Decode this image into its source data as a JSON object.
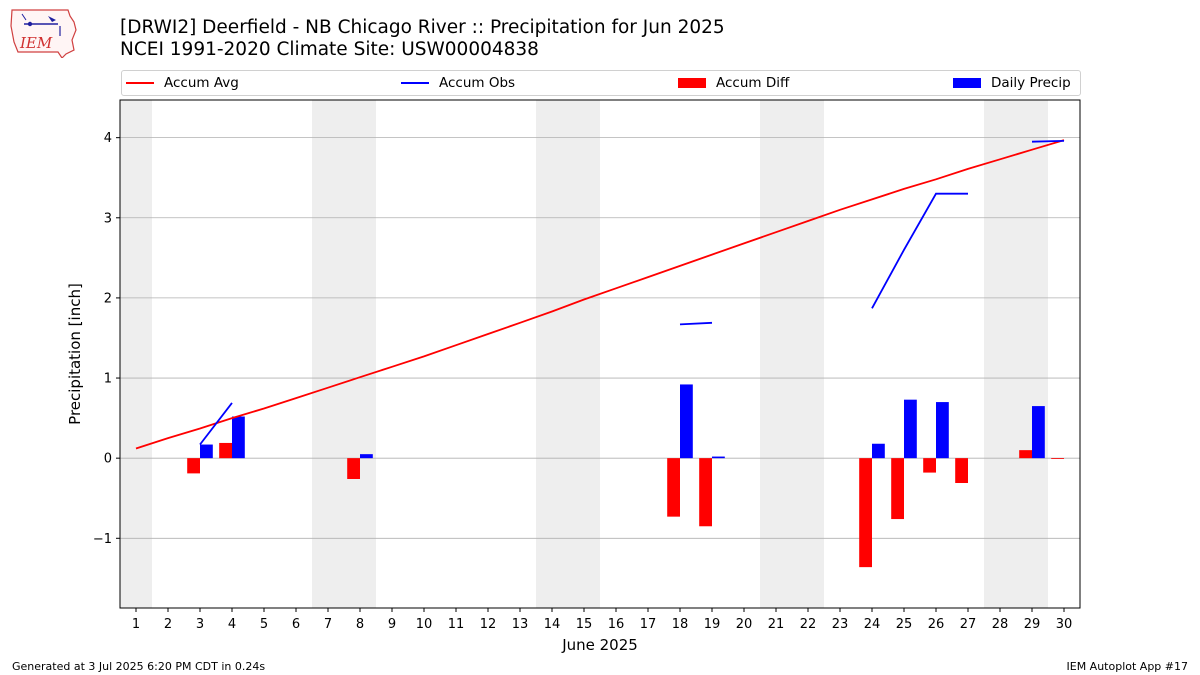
{
  "header": {
    "title_line1": "[DRWI2] Deerfield - NB Chicago River :: Precipitation for Jun 2025",
    "title_line2": "NCEI 1991-2020 Climate Site: USW00004838",
    "logo_text": "IEM"
  },
  "footer": {
    "left": "Generated at 3 Jul 2025 6:20 PM CDT in 0.24s",
    "right": "IEM Autoplot App #17"
  },
  "colors": {
    "accum_avg": "#ff0000",
    "accum_obs": "#0000ff",
    "accum_diff": "#ff0000",
    "daily_precip": "#0000ff",
    "weekend_shade": "#eeeeee",
    "grid": "#b0b0b0"
  },
  "chart_data": {
    "type": "bar",
    "xlabel": "June 2025",
    "ylabel": "Precipitation [inch]",
    "ylim": [
      -1.87,
      4.47
    ],
    "yticks": [
      -1,
      0,
      1,
      2,
      3,
      4
    ],
    "grid": "horizontal",
    "legend_placement": "top",
    "legend": [
      {
        "name": "Accum Avg",
        "kind": "line",
        "color": "#ff0000"
      },
      {
        "name": "Accum Obs",
        "kind": "line",
        "color": "#0000ff"
      },
      {
        "name": "Accum Diff",
        "kind": "bar",
        "color": "#ff0000"
      },
      {
        "name": "Daily Precip",
        "kind": "bar",
        "color": "#0000ff"
      }
    ],
    "days": [
      1,
      2,
      3,
      4,
      5,
      6,
      7,
      8,
      9,
      10,
      11,
      12,
      13,
      14,
      15,
      16,
      17,
      18,
      19,
      20,
      21,
      22,
      23,
      24,
      25,
      26,
      27,
      28,
      29,
      30
    ],
    "weekend_days": [
      1,
      7,
      8,
      14,
      15,
      21,
      22,
      28,
      29
    ],
    "accum_avg": [
      0.12,
      0.25,
      0.37,
      0.5,
      0.62,
      0.75,
      0.88,
      1.01,
      1.14,
      1.27,
      1.41,
      1.55,
      1.69,
      1.83,
      1.98,
      2.12,
      2.26,
      2.4,
      2.54,
      2.68,
      2.82,
      2.96,
      3.1,
      3.23,
      3.36,
      3.48,
      3.61,
      3.73,
      3.85,
      3.97
    ],
    "accum_obs_segments": [
      [
        [
          3,
          0.17
        ],
        [
          4,
          0.69
        ]
      ],
      [
        [
          18,
          1.67
        ],
        [
          19,
          1.69
        ]
      ],
      [
        [
          24,
          1.87
        ],
        [
          25,
          2.6
        ],
        [
          26,
          3.3
        ],
        [
          27,
          3.3
        ]
      ],
      [
        [
          29,
          3.95
        ],
        [
          30,
          3.96
        ]
      ]
    ],
    "daily_precip": [
      {
        "day": 3,
        "value": 0.17
      },
      {
        "day": 4,
        "value": 0.52
      },
      {
        "day": 8,
        "value": 0.05
      },
      {
        "day": 18,
        "value": 0.92
      },
      {
        "day": 19,
        "value": 0.02
      },
      {
        "day": 24,
        "value": 0.18
      },
      {
        "day": 25,
        "value": 0.73
      },
      {
        "day": 26,
        "value": 0.7
      },
      {
        "day": 29,
        "value": 0.65
      }
    ],
    "accum_diff": [
      {
        "day": 3,
        "value": -0.19
      },
      {
        "day": 4,
        "value": 0.19
      },
      {
        "day": 8,
        "value": -0.26
      },
      {
        "day": 18,
        "value": -0.73
      },
      {
        "day": 19,
        "value": -0.85
      },
      {
        "day": 24,
        "value": -1.36
      },
      {
        "day": 25,
        "value": -0.76
      },
      {
        "day": 26,
        "value": -0.18
      },
      {
        "day": 27,
        "value": -0.31
      },
      {
        "day": 29,
        "value": 0.1
      },
      {
        "day": 30,
        "value": -0.01
      }
    ]
  }
}
